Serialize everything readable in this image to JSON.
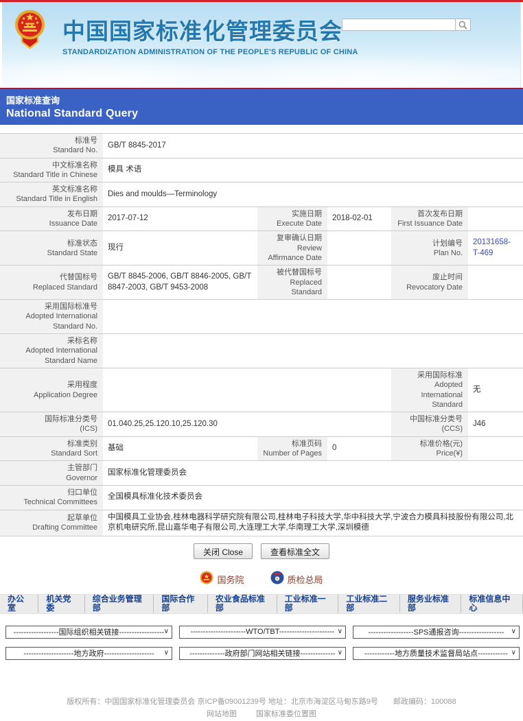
{
  "header": {
    "site_title_zh": "中国国家标准化管理委员会",
    "site_title_en": "STANDARDIZATION ADMINISTRATION OF THE PEOPLE'S REPUBLIC OF CHINA",
    "search": {
      "value": "",
      "placeholder": ""
    },
    "emblem_icon": "china-national-emblem",
    "search_icon": "magnifier",
    "title_color": "#2578ad"
  },
  "banner": {
    "title_zh": "国家标准查询",
    "title_en": "National Standard Query",
    "bg_color": "#3a62c4"
  },
  "detail": {
    "rows": [
      {
        "h": 30,
        "cells": [
          {
            "t": "l",
            "zh": "标准号",
            "en": "Standard No.",
            "s": 1
          },
          {
            "t": "v",
            "text": "GB/T 8845-2017",
            "s": 5
          }
        ]
      },
      {
        "h": 30,
        "cells": [
          {
            "t": "l",
            "zh": "中文标准名称",
            "en": "Standard Title in Chinese",
            "s": 1
          },
          {
            "t": "v",
            "text": "模具 术语",
            "s": 5
          }
        ]
      },
      {
        "h": 30,
        "cells": [
          {
            "t": "l",
            "zh": "英文标准名称",
            "en": "Standard Title in English",
            "s": 1
          },
          {
            "t": "v",
            "text": "Dies and moulds—Terminology",
            "s": 5
          }
        ]
      },
      {
        "h": 32,
        "cells": [
          {
            "t": "l",
            "zh": "发布日期",
            "en": "Issuance Date",
            "s": 1
          },
          {
            "t": "v",
            "text": "2017-07-12",
            "s": 1
          },
          {
            "t": "l",
            "zh": "实施日期",
            "en": "Execute Date",
            "s": 1
          },
          {
            "t": "v",
            "text": "2018-02-01",
            "s": 1
          },
          {
            "t": "l",
            "zh": "首次发布日期",
            "en": "First Issuance Date",
            "s": 1
          },
          {
            "t": "v",
            "text": "",
            "s": 1
          }
        ]
      },
      {
        "h": 44,
        "cells": [
          {
            "t": "l",
            "zh": "标准状态",
            "en": "Standard State",
            "s": 1
          },
          {
            "t": "v",
            "text": "现行",
            "s": 1
          },
          {
            "t": "l",
            "zh": "复审确认日期",
            "en": "Review Affirmance Date",
            "s": 1
          },
          {
            "t": "v",
            "text": "",
            "s": 1
          },
          {
            "t": "l",
            "zh": "计划编号",
            "en": "Plan No.",
            "s": 1
          },
          {
            "t": "v",
            "text": "20131658-T-469",
            "s": 1,
            "link": true
          }
        ]
      },
      {
        "h": 32,
        "cells": [
          {
            "t": "l",
            "zh": "代替国标号",
            "en": "Replaced Standard",
            "s": 1
          },
          {
            "t": "v",
            "text": "GB/T 8845-2006, GB/T 8846-2005, GB/T 8847-2003, GB/T 9453-2008",
            "s": 1
          },
          {
            "t": "l",
            "zh": "被代替国标号",
            "en": "Replaced Standard",
            "s": 1
          },
          {
            "t": "v",
            "text": "",
            "s": 1
          },
          {
            "t": "l",
            "zh": "废止时间",
            "en": "Revocatory Date",
            "s": 1
          },
          {
            "t": "v",
            "text": "",
            "s": 1
          }
        ]
      },
      {
        "h": 40,
        "cells": [
          {
            "t": "l",
            "zh": "采用国际标准号",
            "en": "Adopted International Standard No.",
            "s": 1
          },
          {
            "t": "v",
            "text": "",
            "s": 5
          }
        ]
      },
      {
        "h": 40,
        "cells": [
          {
            "t": "l",
            "zh": "采标名称",
            "en": "Adopted International Standard Name",
            "s": 1
          },
          {
            "t": "v",
            "text": "",
            "s": 5
          }
        ]
      },
      {
        "h": 42,
        "cells": [
          {
            "t": "l",
            "zh": "采用程度",
            "en": "Application Degree",
            "s": 1
          },
          {
            "t": "v",
            "text": "",
            "s": 3
          },
          {
            "t": "l",
            "zh": "采用国际标准",
            "en": "Adopted International Standard",
            "s": 1
          },
          {
            "t": "v",
            "text": "无",
            "s": 1
          }
        ]
      },
      {
        "h": 30,
        "cells": [
          {
            "t": "l",
            "zh": "国际标准分类号",
            "en": "(ICS)",
            "s": 1
          },
          {
            "t": "v",
            "text": "01.040.25,25.120.10,25.120.30",
            "s": 3
          },
          {
            "t": "l",
            "zh": "中国标准分类号",
            "en": "(CCS)",
            "s": 1
          },
          {
            "t": "v",
            "text": "J46",
            "s": 1
          }
        ]
      },
      {
        "h": 32,
        "cells": [
          {
            "t": "l",
            "zh": "标准类别",
            "en": "Standard Sort",
            "s": 1
          },
          {
            "t": "v",
            "text": "基础",
            "s": 1
          },
          {
            "t": "l",
            "zh": "标准页码",
            "en": "Number of Pages",
            "s": 1
          },
          {
            "t": "v",
            "text": "0",
            "s": 1
          },
          {
            "t": "l",
            "zh": "标准价格(元)",
            "en": "Price(¥)",
            "s": 1
          },
          {
            "t": "v",
            "text": "",
            "s": 1
          }
        ]
      },
      {
        "h": 30,
        "cells": [
          {
            "t": "l",
            "zh": "主管部门",
            "en": "Governor",
            "s": 1
          },
          {
            "t": "v",
            "text": "国家标准化管理委员会",
            "s": 5
          }
        ]
      },
      {
        "h": 30,
        "cells": [
          {
            "t": "l",
            "zh": "归口单位",
            "en": "Technical Committees",
            "s": 1
          },
          {
            "t": "v",
            "text": "全国模具标准化技术委员会",
            "s": 5
          }
        ]
      },
      {
        "h": 36,
        "cells": [
          {
            "t": "l",
            "zh": "起草单位",
            "en": "Drafting Committee",
            "s": 1
          },
          {
            "t": "v",
            "text": "中国模具工业协会,桂林电器科学研究院有限公司,桂林电子科技大学,华中科技大学,宁波合力模具科技股份有限公司,北京机电研究所,昆山嘉华电子有限公司,大连理工大学,华南理工大学,深圳模德",
            "s": 5
          }
        ]
      }
    ]
  },
  "actions": {
    "close_label": "关闭 Close",
    "view_full_label": "查看标准全文"
  },
  "related_links": [
    {
      "icon": "state-council-emblem",
      "label": "国务院"
    },
    {
      "icon": "aqsiq-emblem",
      "label": "质检总局"
    }
  ],
  "departments": [
    "办公室",
    "机关党委",
    "综合业务管理部",
    "国际合作部",
    "农业食品标准部",
    "工业标准一部",
    "工业标准二部",
    "服务业标准部",
    "标准信息中心"
  ],
  "dropdowns": [
    {
      "name": "dropdown-international-orgs",
      "label": "------------------国际组织相关链接------------------"
    },
    {
      "name": "dropdown-wto-tbt",
      "label": "----------------------WTO/TBT----------------------"
    },
    {
      "name": "dropdown-sps",
      "label": "------------------SPS通报咨询------------------"
    },
    {
      "name": "dropdown-local-gov",
      "label": "--------------------地方政府--------------------"
    },
    {
      "name": "dropdown-gov-sites",
      "label": "--------------政府部门网站相关链接--------------"
    },
    {
      "name": "dropdown-local-bureau",
      "label": "------------地方质量技术监督局站点------------"
    }
  ],
  "footer": {
    "line1": "版权所有：中国国家标准化管理委员会 京ICP备09001239号 地址：北京市海淀区马甸东路9号　　邮政编码：100088",
    "sitemap": "网站地图",
    "location_map": "国家标准委位置图"
  }
}
